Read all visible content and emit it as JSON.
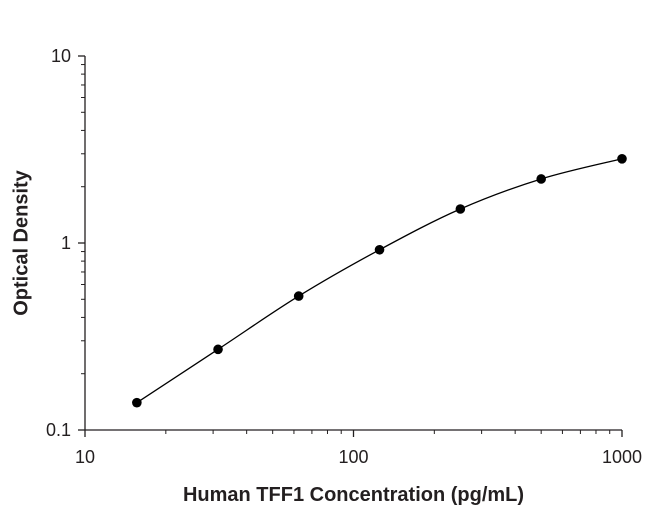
{
  "chart_data": {
    "type": "scatter",
    "title": "",
    "xlabel": "Human TFF1 Concentration (pg/mL)",
    "ylabel": "Optical Density",
    "xscale": "log",
    "yscale": "log",
    "xlim": [
      10,
      1000
    ],
    "ylim": [
      0.1,
      10
    ],
    "xticks": [
      "10",
      "100",
      "1000"
    ],
    "yticks": [
      "0.1",
      "1",
      "10"
    ],
    "grid": false,
    "legend": "none",
    "fit_curve": "smooth standard curve through points",
    "colors": {
      "marker": "#000000",
      "line": "#000000",
      "axis": "#231f20"
    },
    "series": [
      {
        "x": [
          15.6,
          31.3,
          62.5,
          125,
          250,
          500,
          1000
        ],
        "y": [
          0.14,
          0.27,
          0.52,
          0.92,
          1.52,
          2.2,
          2.82
        ]
      }
    ]
  }
}
